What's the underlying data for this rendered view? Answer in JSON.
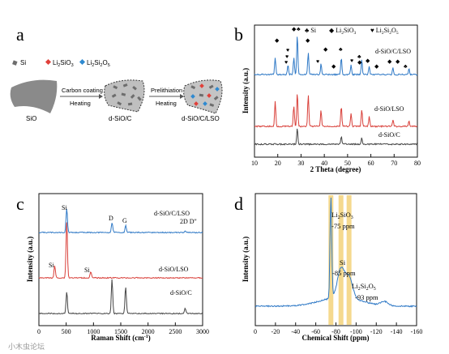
{
  "panels": {
    "a": {
      "letter": "a",
      "legend": [
        {
          "marker": "■",
          "label": "Si",
          "color": "#6d6d6d"
        },
        {
          "marker": "◆",
          "label": "Li",
          "sub": "2",
          "label2": "SiO",
          "sub2": "3",
          "color": "#e0403a"
        },
        {
          "marker": "◆",
          "label": "Li",
          "sub": "2",
          "label2": "Si",
          "sub2": "2",
          "label3": "O",
          "sub3": "5",
          "color": "#2f8ad0"
        }
      ],
      "step1_top": "Carbon coating",
      "step1_bottom": "Heating",
      "step2_top": "Prelithiation",
      "step2_bottom": "Heating",
      "label_sio": "SiO",
      "label_dsioc": "d-SiO/C",
      "label_dsioclso": "d-SiO/C/LSO"
    },
    "b": {
      "letter": "b",
      "legend_si": "Si",
      "legend_lso_a": "Li",
      "legend_lso_sub": "2",
      "legend_lso_b": "SiO",
      "legend_lso_sub2": "3",
      "legend_lso2_a": "Li",
      "legend_lso2_sub": "2",
      "legend_lso2_b": "Si",
      "legend_lso2_sub2": "2",
      "legend_lso2_c": "O",
      "legend_lso2_sub3": "5",
      "xlabel": "2 Theta (degree)",
      "ylabel": "Intensity (a.u.)",
      "series_labels": [
        "d-SiO/C/LSO",
        "d-SiO/LSO",
        "d-SiO/C"
      ]
    },
    "c": {
      "letter": "c",
      "xlabel_a": "Raman Shift (cm",
      "xlabel_sup": "-1",
      "xlabel_b": ")",
      "ylabel": "Intensity (a.u.)",
      "series_labels": [
        "d-SiO/C/LSO",
        "d-SiO/LSO",
        "d-SiO/C"
      ],
      "peak_labels": {
        "si_top": "Si",
        "d": "D",
        "g": "G",
        "twod": "2D D\"",
        "si_mid1": "Si",
        "si_mid2": "Si"
      }
    },
    "d": {
      "letter": "d",
      "xlabel": "Chemical Shift (ppm)",
      "ylabel": "Intensity (a.u.)",
      "ann1_a": "Li",
      "ann1_sub": "2",
      "ann1_b": "SiO",
      "ann1_sub2": "3",
      "ann1_ppm": "-75 ppm",
      "ann2_a": "Si",
      "ann2_ppm": "-85 ppm",
      "ann3_a": "Li",
      "ann3_sub": "2",
      "ann3_b": "Si",
      "ann3_sub2": "2",
      "ann3_c": "O",
      "ann3_sub3": "5",
      "ann3_ppm": "-93 ppm"
    }
  },
  "watermark": "小木虫论坛",
  "chart_data": [
    {
      "type": "line",
      "panel": "b",
      "xlabel": "2 Theta (degree)",
      "ylabel": "Intensity (a.u.)",
      "xlim": [
        10,
        80
      ],
      "xticks": [
        10,
        20,
        30,
        40,
        50,
        60,
        70,
        80
      ],
      "series": [
        {
          "name": "d-SiO/C/LSO",
          "color": "#2f79c6",
          "peaks": [
            [
              18.9,
              0.35
            ],
            [
              24.4,
              0.2
            ],
            [
              26.9,
              0.35
            ],
            [
              28.4,
              0.85
            ],
            [
              33.1,
              0.45
            ],
            [
              38.6,
              0.22
            ],
            [
              47.3,
              0.35
            ],
            [
              51.5,
              0.2
            ],
            [
              56.1,
              0.32
            ],
            [
              59.3,
              0.18
            ],
            [
              69.5,
              0.14
            ],
            [
              76.4,
              0.12
            ]
          ]
        },
        {
          "name": "d-SiO/LSO",
          "color": "#d9403a",
          "peaks": [
            [
              18.9,
              0.55
            ],
            [
              26.9,
              0.45
            ],
            [
              28.4,
              0.75
            ],
            [
              33.1,
              0.7
            ],
            [
              38.6,
              0.35
            ],
            [
              47.3,
              0.45
            ],
            [
              51.5,
              0.28
            ],
            [
              56.1,
              0.38
            ],
            [
              59.3,
              0.22
            ],
            [
              69.5,
              0.15
            ],
            [
              76.4,
              0.12
            ]
          ]
        },
        {
          "name": "d-SiO/C",
          "color": "#444444",
          "peaks": [
            [
              28.4,
              0.25
            ],
            [
              47.3,
              0.12
            ],
            [
              56.1,
              0.1
            ]
          ]
        }
      ]
    },
    {
      "type": "line",
      "panel": "c",
      "xlabel": "Raman Shift (cm-1)",
      "ylabel": "Intensity (a.u.)",
      "xlim": [
        0,
        3000
      ],
      "xticks": [
        0,
        500,
        1000,
        1500,
        2000,
        2500,
        3000
      ],
      "series": [
        {
          "name": "d-SiO/C/LSO",
          "color": "#2f79c6",
          "peaks": [
            [
              510,
              0.75
            ],
            [
              1340,
              0.3
            ],
            [
              1590,
              0.22
            ],
            [
              2680,
              0.06
            ]
          ]
        },
        {
          "name": "d-SiO/LSO",
          "color": "#d9403a",
          "peaks": [
            [
              290,
              0.2
            ],
            [
              510,
              0.95
            ],
            [
              950,
              0.1
            ]
          ]
        },
        {
          "name": "d-SiO/C",
          "color": "#444444",
          "peaks": [
            [
              510,
              0.45
            ],
            [
              1340,
              0.7
            ],
            [
              1590,
              0.55
            ],
            [
              2680,
              0.12
            ]
          ]
        }
      ]
    },
    {
      "type": "line",
      "panel": "d",
      "xlabel": "Chemical Shift (ppm)",
      "ylabel": "Intensity (a.u.)",
      "xlim": [
        0,
        -160
      ],
      "xticks": [
        0,
        -20,
        -40,
        -60,
        -80,
        -100,
        -120,
        -140,
        -160
      ],
      "series": [
        {
          "name": "",
          "color": "#2f79c6",
          "peaks": [
            [
              -75,
              1.0
            ],
            [
              -85,
              0.28
            ],
            [
              -93,
              0.2
            ],
            [
              -128,
              0.04
            ]
          ]
        }
      ],
      "highlights_ppm": [
        -75,
        -85,
        -93
      ]
    }
  ]
}
